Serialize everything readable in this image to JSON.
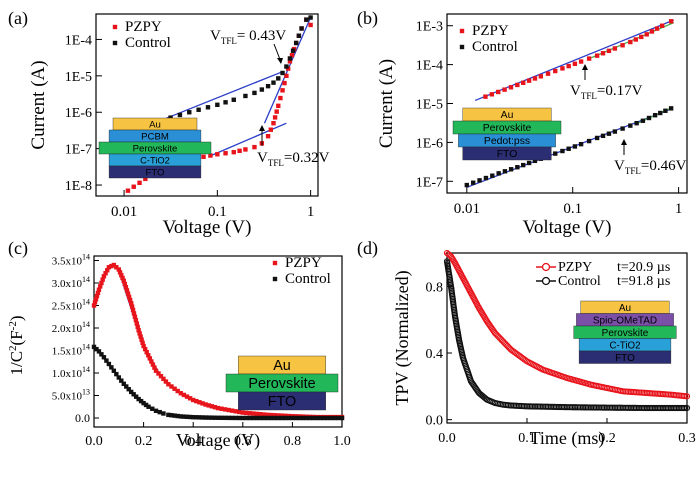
{
  "colors": {
    "pzpy": "#e8141c",
    "control": "#111111",
    "fit": "#2a3cc8",
    "au": "#f6c342",
    "pcbm": "#2a8fd4",
    "perovskite": "#22b85a",
    "ctio2": "#2aa0d8",
    "fto": "#2c2e74",
    "pedot": "#2a8fd4",
    "spiro": "#7b4fa8"
  },
  "chart_data": [
    {
      "panel": "(a)",
      "type": "scatter",
      "xscale": "log",
      "yscale": "log",
      "xlim": [
        0.005,
        1.2
      ],
      "ylim": [
        5e-09,
        0.0005
      ],
      "xlabel": "Voltage (V)",
      "ylabel": "Current (A)",
      "xticks": [
        "0.01",
        "0.1",
        "1"
      ],
      "yticks": [
        "1E-8",
        "1E-7",
        "1E-6",
        "1E-5",
        "1E-4"
      ],
      "legend": "top-left",
      "annotations": [
        {
          "pre": "V",
          "sub": "TFL",
          "post": "= 0.43V"
        },
        {
          "pre": "V",
          "sub": "TFL",
          "post": "=0.32V"
        }
      ],
      "stack": [
        "Au",
        "PCBM",
        "Perovskite",
        "C-TiO2",
        "FTO"
      ],
      "series": [
        {
          "name": "PZPY",
          "x": [
            0.011,
            0.03,
            0.06,
            0.1,
            0.15,
            0.2,
            0.25,
            0.3,
            0.35,
            0.4,
            0.45,
            0.5,
            0.55,
            0.6,
            0.7,
            0.8,
            0.9,
            1.0
          ],
          "y": [
            7e-09,
            4e-08,
            5.5e-08,
            7e-08,
            8e-08,
            9.5e-08,
            1.1e-07,
            1.4e-07,
            2.2e-07,
            5e-07,
            1.5e-06,
            4e-06,
            1e-05,
            2.5e-05,
            8e-05,
            0.0002,
            0.00035,
            0.00025
          ]
        },
        {
          "name": "Control",
          "x": [
            0.025,
            0.05,
            0.1,
            0.15,
            0.2,
            0.25,
            0.3,
            0.35,
            0.4,
            0.45,
            0.5,
            0.55,
            0.6,
            0.7,
            0.8,
            0.9,
            1.0
          ],
          "y": [
            6e-07,
            1e-06,
            1.6e-06,
            2.2e-06,
            2.8e-06,
            3.4e-06,
            4.2e-06,
            5.2e-06,
            6.5e-06,
            8.5e-06,
            1.2e-05,
            1.8e-05,
            3e-05,
            8e-05,
            0.0002,
            0.00035,
            0.0004
          ]
        }
      ]
    },
    {
      "panel": "(b)",
      "type": "scatter",
      "xscale": "log",
      "yscale": "log",
      "xlim": [
        0.0065,
        1.2
      ],
      "ylim": [
        5e-08,
        0.002
      ],
      "xlabel": "Voltage (V)",
      "ylabel": "Current (A)",
      "xticks": [
        "0.01",
        "0.1",
        "1"
      ],
      "yticks": [
        "1E-7",
        "1E-6",
        "1E-5",
        "1E-4",
        "1E-3"
      ],
      "legend": "top-left",
      "annotations": [
        {
          "pre": "V",
          "sub": "TFL",
          "post": "=0.17V"
        },
        {
          "pre": "V",
          "sub": "TFL",
          "post": "=0.46V"
        }
      ],
      "stack": [
        "Au",
        "Perovskite",
        "Pedot:pss",
        "FTO"
      ],
      "series": [
        {
          "name": "PZPY",
          "x": [
            0.015,
            0.03,
            0.05,
            0.08,
            0.12,
            0.17,
            0.25,
            0.35,
            0.5,
            0.7,
            0.85
          ],
          "y": [
            1.5e-05,
            3e-05,
            5e-05,
            8e-05,
            0.00012,
            0.00017,
            0.00026,
            0.00038,
            0.0006,
            0.001,
            0.0013
          ]
        },
        {
          "name": "Control",
          "x": [
            0.01,
            0.02,
            0.03,
            0.05,
            0.08,
            0.12,
            0.17,
            0.25,
            0.35,
            0.46,
            0.6,
            0.75,
            0.85
          ],
          "y": [
            8e-08,
            1.6e-07,
            2.3e-07,
            3.8e-07,
            6e-07,
            9e-07,
            1.3e-06,
            1.9e-06,
            2.7e-06,
            3.6e-06,
            5e-06,
            6.5e-06,
            7.5e-06
          ]
        }
      ]
    },
    {
      "panel": "(c)",
      "type": "scatter",
      "xlim": [
        0,
        1.0
      ],
      "ylim": [
        -20000000000000.0,
        360000000000000.0
      ],
      "xlabel": "Voltage (V)",
      "ylabel_parts": {
        "pre": "1/C",
        "sup": "2",
        "mid": "(F",
        "sup2": "-2",
        "post": ")"
      },
      "xticks": [
        "0.0",
        "0.2",
        "0.4",
        "0.6",
        "0.8",
        "1.0"
      ],
      "yticks": [
        {
          "v": 0,
          "label": "0.0"
        },
        {
          "v": 50000000000000.0,
          "m": "5.0x10",
          "e": "13"
        },
        {
          "v": 100000000000000.0,
          "m": "1.0x10",
          "e": "14"
        },
        {
          "v": 150000000000000.0,
          "m": "1.5x10",
          "e": "14"
        },
        {
          "v": 200000000000000.0,
          "m": "2.0x10",
          "e": "14"
        },
        {
          "v": 250000000000000.0,
          "m": "2.5x10",
          "e": "14"
        },
        {
          "v": 300000000000000.0,
          "m": "3.0x10",
          "e": "14"
        },
        {
          "v": 350000000000000.0,
          "m": "3.5x10",
          "e": "14"
        }
      ],
      "legend": "top-right",
      "stack": [
        "Au",
        "Perovskite",
        "FTO"
      ],
      "series": [
        {
          "name": "PZPY",
          "x": [
            0,
            0.02,
            0.04,
            0.06,
            0.08,
            0.1,
            0.12,
            0.15,
            0.18,
            0.2,
            0.25,
            0.3,
            0.35,
            0.4,
            0.45,
            0.5,
            0.6,
            0.7,
            0.8,
            0.9,
            1.0
          ],
          "y": [
            250000000000000.0,
            285000000000000.0,
            315000000000000.0,
            335000000000000.0,
            340000000000000.0,
            330000000000000.0,
            305000000000000.0,
            255000000000000.0,
            195000000000000.0,
            160000000000000.0,
            105000000000000.0,
            75000000000000.0,
            55000000000000.0,
            40000000000000.0,
            30000000000000.0,
            22000000000000.0,
            12000000000000.0,
            7000000000000.0,
            4000000000000.0,
            2000000000000.0,
            2000000000000.0
          ]
        },
        {
          "name": "Control",
          "x": [
            0,
            0.02,
            0.04,
            0.06,
            0.08,
            0.1,
            0.12,
            0.15,
            0.18,
            0.2,
            0.22,
            0.25,
            0.28,
            0.3,
            0.35,
            0.4,
            0.45,
            0.5,
            0.6,
            0.7,
            0.8,
            0.9,
            1.0
          ],
          "y": [
            158000000000000.0,
            148000000000000.0,
            135000000000000.0,
            120000000000000.0,
            105000000000000.0,
            90000000000000.0,
            76000000000000.0,
            58000000000000.0,
            42000000000000.0,
            33000000000000.0,
            25000000000000.0,
            16000000000000.0,
            10000000000000.0,
            7000000000000.0,
            3500000000000.0,
            1800000000000.0,
            1000000000000.0,
            500000000000.0,
            0,
            0,
            0,
            0,
            0
          ]
        }
      ]
    },
    {
      "panel": "(d)",
      "type": "line",
      "xlim": [
        0,
        0.3
      ],
      "ylim": [
        -0.02,
        1.0
      ],
      "xlabel": "Time (ms)",
      "ylabel": "TPV (Normalized)",
      "xticks": [
        "0.0",
        "0.1",
        "0.2",
        "0.3"
      ],
      "yticks": [
        "0.0",
        "0.4",
        "0.8"
      ],
      "legend": "top-right",
      "stack": [
        "Au",
        "Spio-OMeTAD",
        "Perovskite",
        "C-TiO2",
        "FTO"
      ],
      "series": [
        {
          "name": "PZPY",
          "tau_label": "t=20.9 µs",
          "x": [
            0,
            0.005,
            0.01,
            0.02,
            0.03,
            0.04,
            0.05,
            0.06,
            0.08,
            0.1,
            0.12,
            0.15,
            0.18,
            0.2,
            0.22,
            0.25,
            0.28,
            0.3
          ],
          "y": [
            1.0,
            0.98,
            0.94,
            0.85,
            0.76,
            0.67,
            0.59,
            0.52,
            0.42,
            0.35,
            0.3,
            0.25,
            0.21,
            0.19,
            0.17,
            0.16,
            0.15,
            0.14
          ]
        },
        {
          "name": "Control",
          "tau_label": "t=91.8 µs",
          "x": [
            0,
            0.005,
            0.01,
            0.015,
            0.02,
            0.03,
            0.04,
            0.05,
            0.06,
            0.07,
            0.08,
            0.1,
            0.12,
            0.15,
            0.2,
            0.25,
            0.3
          ],
          "y": [
            0.95,
            0.8,
            0.62,
            0.48,
            0.37,
            0.23,
            0.16,
            0.12,
            0.1,
            0.09,
            0.085,
            0.08,
            0.078,
            0.075,
            0.072,
            0.07,
            0.07
          ]
        }
      ]
    }
  ]
}
